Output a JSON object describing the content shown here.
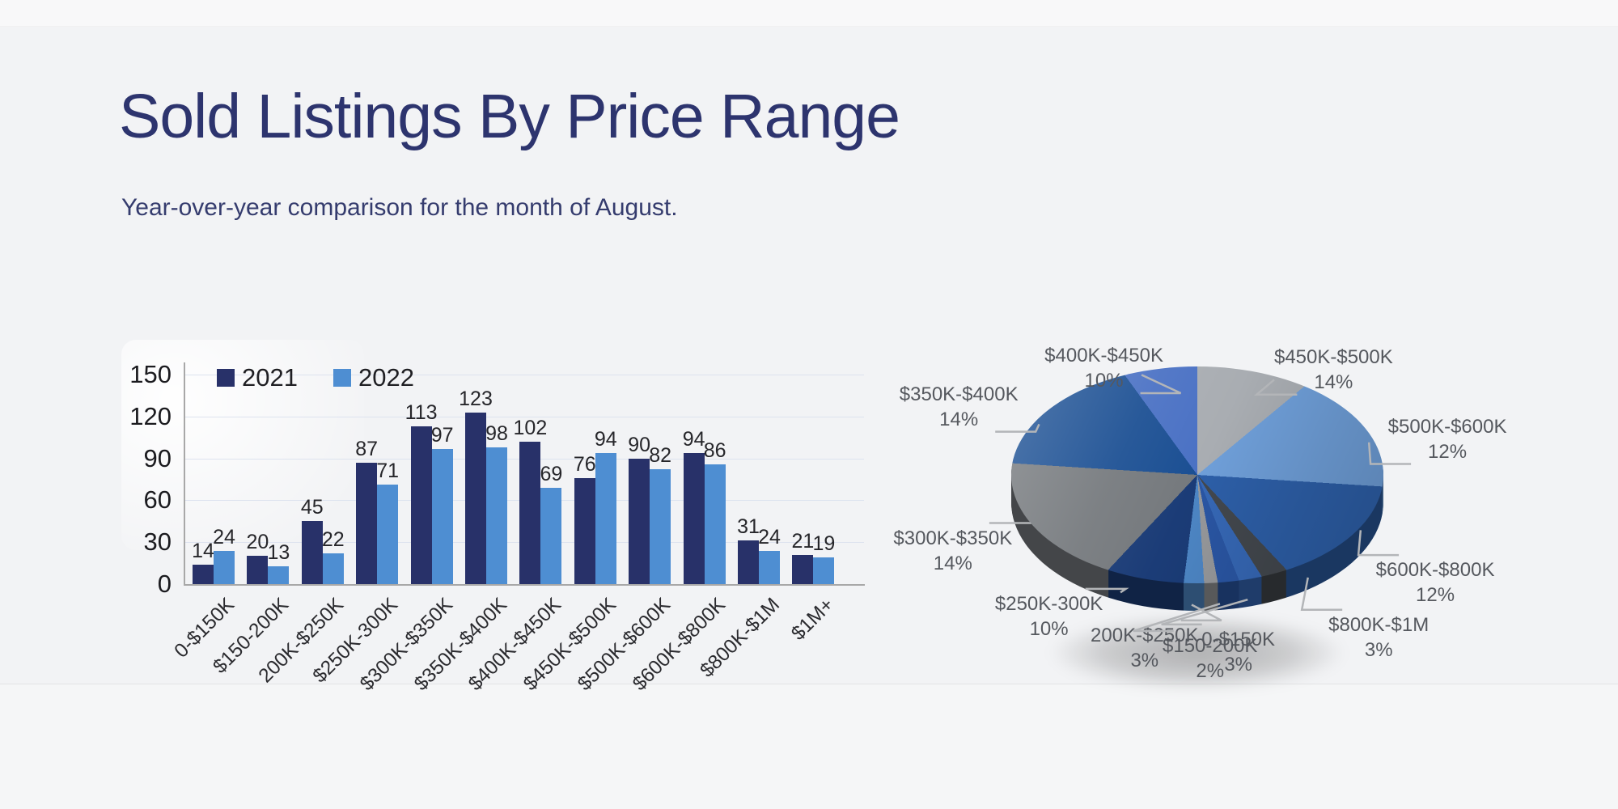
{
  "page": {
    "title": "Sold Listings By Price Range",
    "subtitle": "Year-over-year comparison for the month of August."
  },
  "colors": {
    "background": "#f2f3f5",
    "title_text": "#2d346e",
    "subtitle_text": "#353c6e",
    "series_2021": "#283169",
    "series_2022": "#4e8ed2",
    "gridline": "#dde3ef",
    "axis": "#a8a8a8",
    "callout_line": "#b3b5b8",
    "pie_label_text": "#55585e"
  },
  "chart_data": [
    {
      "type": "bar",
      "categories": [
        "0-$150K",
        "$150-200K",
        "200K-$250K",
        "$250K-300K",
        "$300K-$350K",
        "$350K-$400K",
        "$400K-$450K",
        "$450K-$500K",
        "$500K-$600K",
        "$600K-$800K",
        "$800K-$1M",
        "$1M+"
      ],
      "series": [
        {
          "name": "2021",
          "color": "#283169",
          "values": [
            14,
            20,
            45,
            87,
            113,
            123,
            102,
            76,
            90,
            94,
            31,
            21
          ]
        },
        {
          "name": "2022",
          "color": "#4e8ed2",
          "values": [
            24,
            13,
            22,
            71,
            97,
            98,
            69,
            94,
            82,
            86,
            24,
            19
          ]
        }
      ],
      "ylim": [
        0,
        150
      ],
      "yticks": [
        0,
        30,
        60,
        90,
        120,
        150
      ],
      "grid": true,
      "legend_position": "top-inside",
      "value_labels": true
    },
    {
      "type": "pie",
      "style": "3d",
      "direction": "clockwise",
      "start_angle_deg": 0,
      "slices": [
        {
          "label": "$450K-$500K",
          "pct": 14,
          "color": "#a9adb2",
          "labeled": true
        },
        {
          "label": "$500K-$600K",
          "pct": 12,
          "color": "#6f9fd9",
          "labeled": true
        },
        {
          "label": "$600K-$800K",
          "pct": 12,
          "color": "#2d5fa8",
          "labeled": true
        },
        {
          "label": "$800K-$1M",
          "pct": 3,
          "color": "#43484e",
          "labeled": true
        },
        {
          "label": "$1M+",
          "pct": 3,
          "color": "#3668b6",
          "labeled": false
        },
        {
          "label": "0-$150K",
          "pct": 3,
          "color": "#2a56a4",
          "labeled": true
        },
        {
          "label": "$150-200K",
          "pct": 2,
          "color": "#97999c",
          "labeled": true
        },
        {
          "label": "200K-$250K",
          "pct": 3,
          "color": "#4d86c5",
          "labeled": true
        },
        {
          "label": "$250K-300K",
          "pct": 10,
          "color": "#1b3c77",
          "labeled": true
        },
        {
          "label": "$300K-$350K",
          "pct": 14,
          "color": "#75797d",
          "labeled": true
        },
        {
          "label": "$350K-$400K",
          "pct": 14,
          "color": "#1b4f93",
          "labeled": true
        },
        {
          "label": "$400K-$450K",
          "pct": 10,
          "color": "#4a71c4",
          "labeled": true
        }
      ]
    }
  ]
}
